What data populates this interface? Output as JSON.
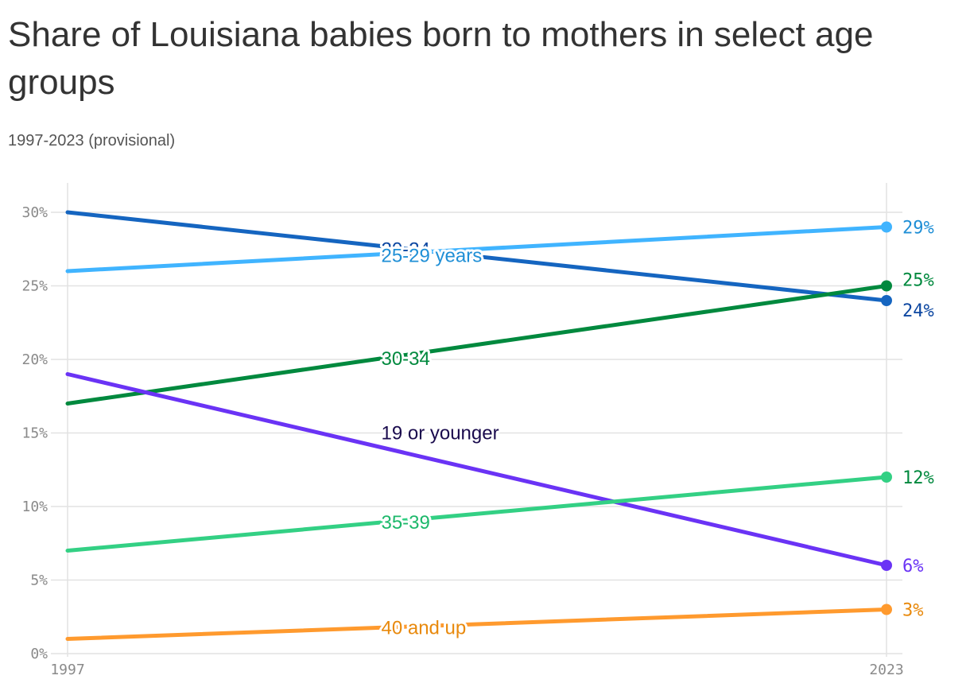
{
  "title": "Share of Louisiana babies born to mothers in select age groups",
  "subtitle": "1997-2023 (provisional)",
  "chart_data": {
    "type": "line",
    "x": [
      1997,
      2023
    ],
    "x_tick_labels": [
      "1997",
      "2023"
    ],
    "y_ticks": [
      0,
      5,
      10,
      15,
      20,
      25,
      30
    ],
    "y_tick_labels": [
      "0%",
      "5%",
      "10%",
      "15%",
      "20%",
      "25%",
      "30%"
    ],
    "ylim": [
      0,
      30
    ],
    "grid": true,
    "series": [
      {
        "name": "20-24",
        "values": [
          30,
          24
        ],
        "end_label": "24%",
        "color": "#1565c0",
        "label_color": "#0d47a1"
      },
      {
        "name": "25-29 years",
        "values": [
          26,
          29
        ],
        "end_label": "29%",
        "color": "#40b4ff",
        "label_color": "#1f8fd6"
      },
      {
        "name": "30-34",
        "values": [
          17,
          25
        ],
        "end_label": "25%",
        "color": "#00893e",
        "label_color": "#00893e"
      },
      {
        "name": "19 or younger",
        "values": [
          19,
          6
        ],
        "end_label": "6%",
        "color": "#6a33f5",
        "label_color": "#1a0b4d"
      },
      {
        "name": "35-39",
        "values": [
          7,
          12
        ],
        "end_label": "12%",
        "color": "#33d084",
        "label_color": "#1db86b"
      },
      {
        "name": "40 and up",
        "values": [
          1,
          3
        ],
        "end_label": "3%",
        "color": "#ff9a2e",
        "label_color": "#e8890c"
      }
    ]
  }
}
